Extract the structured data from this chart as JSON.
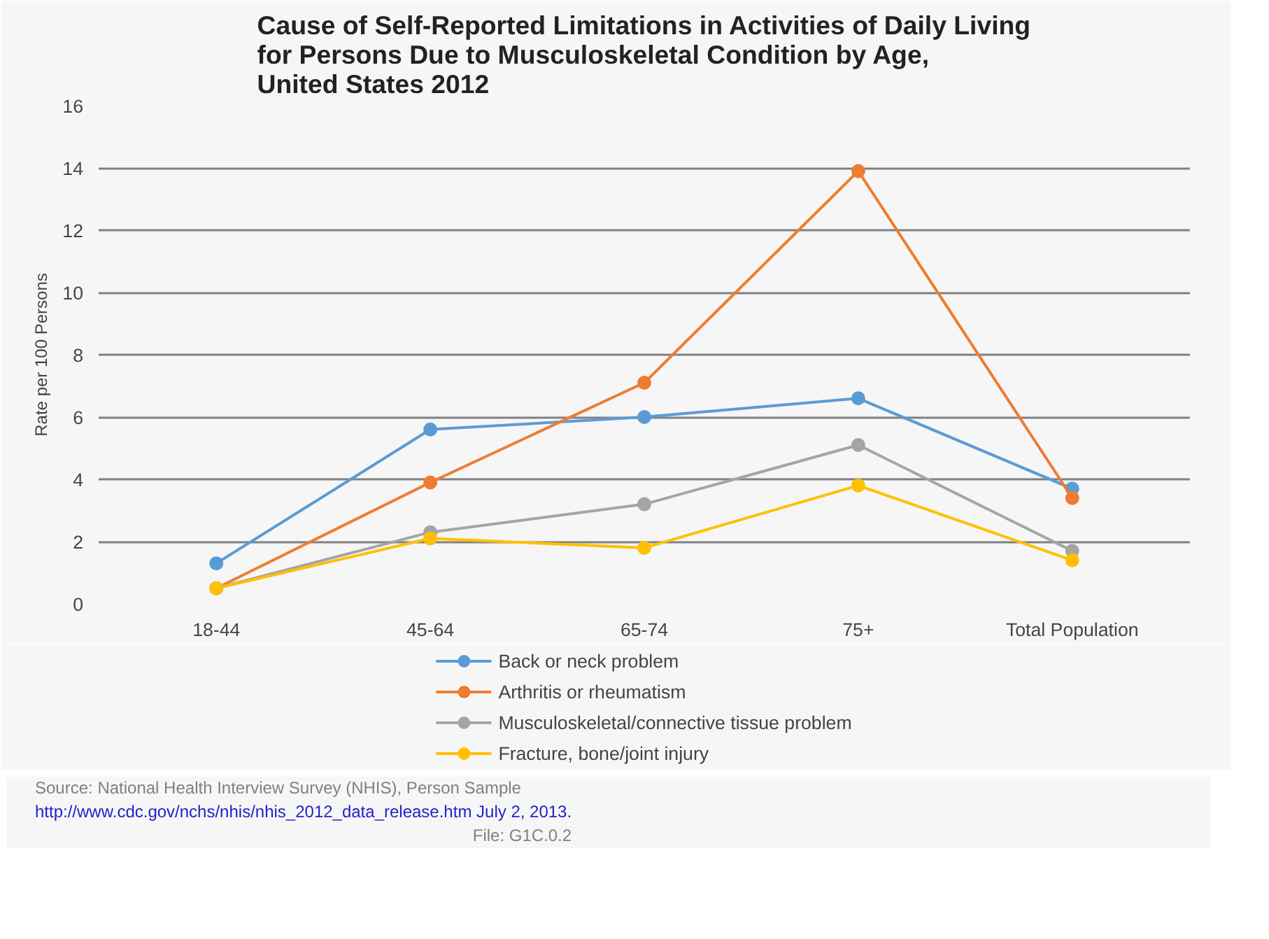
{
  "chart_data": {
    "type": "line",
    "title": "Cause of Self-Reported Limitations in Activities of Daily Living\nfor Persons Due to Musculoskeletal Condition by Age,\nUnited States 2012",
    "ylabel": "Rate per 100 Persons",
    "categories": [
      "18-44",
      "45-64",
      "65-74",
      "75+",
      "Total Population"
    ],
    "series": [
      {
        "name": "Back or neck problem",
        "color": "#5b9bd5",
        "values": [
          1.3,
          5.6,
          6.0,
          6.6,
          3.7
        ]
      },
      {
        "name": "Arthritis or rheumatism",
        "color": "#ed7d31",
        "values": [
          0.5,
          3.9,
          7.1,
          13.9,
          3.4
        ]
      },
      {
        "name": "Musculoskeletal/connective tissue problem",
        "color": "#a5a5a5",
        "values": [
          0.5,
          2.3,
          3.2,
          5.1,
          1.7
        ]
      },
      {
        "name": "Fracture, bone/joint injury",
        "color": "#ffc000",
        "values": [
          0.5,
          2.1,
          1.8,
          3.8,
          1.4
        ]
      }
    ],
    "ylim": [
      0,
      16
    ],
    "yticks": [
      0,
      2,
      4,
      6,
      8,
      10,
      12,
      14,
      16
    ],
    "grid": "y",
    "legend": "bottom",
    "marker": "circle",
    "annotations": [
      "Source: National Health Interview Survey (NHIS), Person Sample",
      "http://www.cdc.gov/nchs/nhis/nhis_2012_data_release.htm July 2, 2013.",
      "File: G1C.0.2"
    ]
  }
}
